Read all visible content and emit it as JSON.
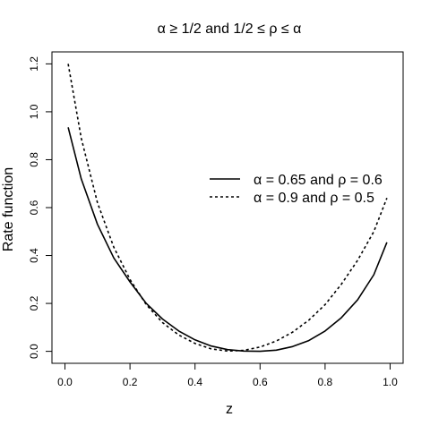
{
  "chart_data": {
    "type": "line",
    "title": "α ≥ 1/2 and 1/2 ≤ ρ ≤ α",
    "xlabel": "z",
    "ylabel": "Rate function",
    "xlim": [
      -0.04,
      1.04
    ],
    "ylim": [
      -0.05,
      1.25
    ],
    "xticks": [
      0.0,
      0.2,
      0.4,
      0.6,
      0.8,
      1.0
    ],
    "xtick_labels": [
      "0.0",
      "0.2",
      "0.4",
      "0.6",
      "0.8",
      "1.0"
    ],
    "yticks": [
      0.0,
      0.2,
      0.4,
      0.6,
      0.8,
      1.0,
      1.2
    ],
    "ytick_labels": [
      "0.0",
      "0.2",
      "0.4",
      "0.6",
      "0.8",
      "1.0",
      "1.2"
    ],
    "grid": false,
    "legend_position": "right",
    "series": [
      {
        "name": "α = 0.65 and ρ = 0.6",
        "line_style": "solid",
        "x": [
          0.01,
          0.05,
          0.1,
          0.15,
          0.2,
          0.25,
          0.3,
          0.35,
          0.4,
          0.45,
          0.5,
          0.55,
          0.6,
          0.65,
          0.7,
          0.75,
          0.8,
          0.85,
          0.9,
          0.95,
          0.99
        ],
        "y": [
          0.935,
          0.72,
          0.53,
          0.39,
          0.29,
          0.2,
          0.135,
          0.085,
          0.048,
          0.022,
          0.007,
          0.001,
          0.0,
          0.005,
          0.02,
          0.045,
          0.085,
          0.14,
          0.215,
          0.32,
          0.455
        ]
      },
      {
        "name": "α = 0.9 and ρ = 0.5",
        "line_style": "dashed",
        "x": [
          0.01,
          0.05,
          0.1,
          0.15,
          0.2,
          0.25,
          0.3,
          0.35,
          0.4,
          0.45,
          0.5,
          0.55,
          0.6,
          0.65,
          0.7,
          0.75,
          0.8,
          0.85,
          0.9,
          0.95,
          0.99
        ],
        "y": [
          1.2,
          0.89,
          0.62,
          0.435,
          0.3,
          0.195,
          0.12,
          0.068,
          0.033,
          0.01,
          0.001,
          0.004,
          0.018,
          0.043,
          0.08,
          0.13,
          0.195,
          0.28,
          0.38,
          0.5,
          0.64
        ]
      }
    ]
  }
}
